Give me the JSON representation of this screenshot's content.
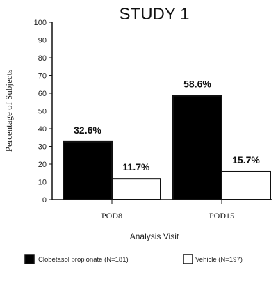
{
  "chart_data": {
    "type": "bar",
    "title": "STUDY 1",
    "xlabel": "Analysis Visit",
    "ylabel": "Percentage of Subjects",
    "categories": [
      "POD8",
      "POD15"
    ],
    "ylim": [
      0,
      100
    ],
    "yticks": [
      "0",
      "10",
      "20",
      "30",
      "40",
      "50",
      "60",
      "70",
      "80",
      "90",
      "100"
    ],
    "series": [
      {
        "name": "Clobetasol propionate (N=181)",
        "values": [
          32.6,
          58.6
        ],
        "labels": [
          "32.6%",
          "58.6%"
        ],
        "color": "#000000"
      },
      {
        "name": "Vehicle (N=197)",
        "values": [
          11.7,
          15.7
        ],
        "labels": [
          "11.7%",
          "15.7%"
        ],
        "color": "#ffffff"
      }
    ],
    "grid": false,
    "legend_position": "bottom"
  }
}
